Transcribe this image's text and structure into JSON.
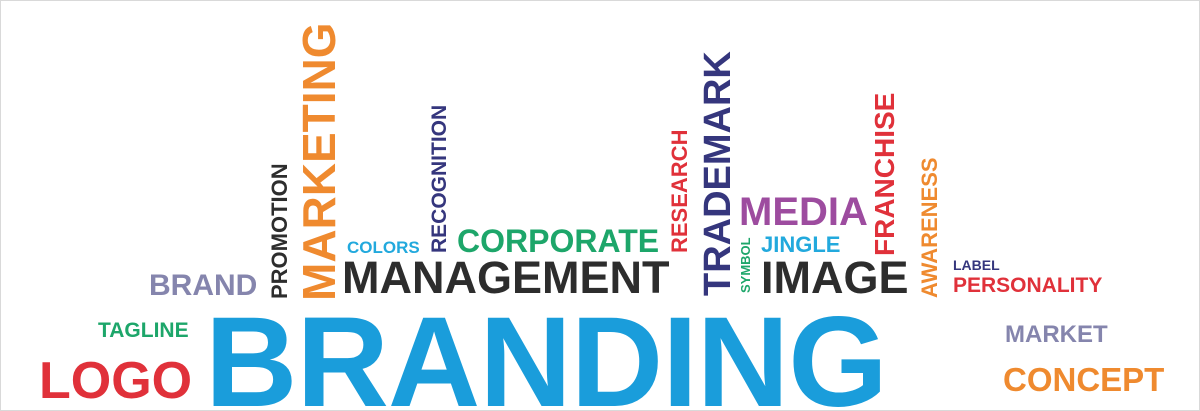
{
  "words": {
    "branding": "BRANDING",
    "logo": "LOGO",
    "tagline": "TAGLINE",
    "brand": "BRAND",
    "promotion": "PROMOTION",
    "marketing": "MARKETING",
    "colors": "COLORS",
    "recognition": "RECOGNITION",
    "management": "MANAGEMENT",
    "corporate": "CORPORATE",
    "research": "RESEARCH",
    "trademark": "TRADEMARK",
    "symbol": "SYMBOL",
    "media": "MEDIA",
    "jingle": "JINGLE",
    "image": "IMAGE",
    "franchise": "FRANCHISE",
    "awareness": "AWARENESS",
    "label": "LABEL",
    "personality": "PERSONALITY",
    "market": "MARKET",
    "concept": "CONCEPT"
  },
  "colors": {
    "blue": "#1a9ddb",
    "red": "#e0313a",
    "green": "#1da66a",
    "lavender": "#8585ad",
    "dark": "#2d2d2d",
    "orange": "#ef8a2f",
    "cyan": "#22a9dd",
    "navy": "#35367d",
    "purple": "#9d4c9f"
  }
}
